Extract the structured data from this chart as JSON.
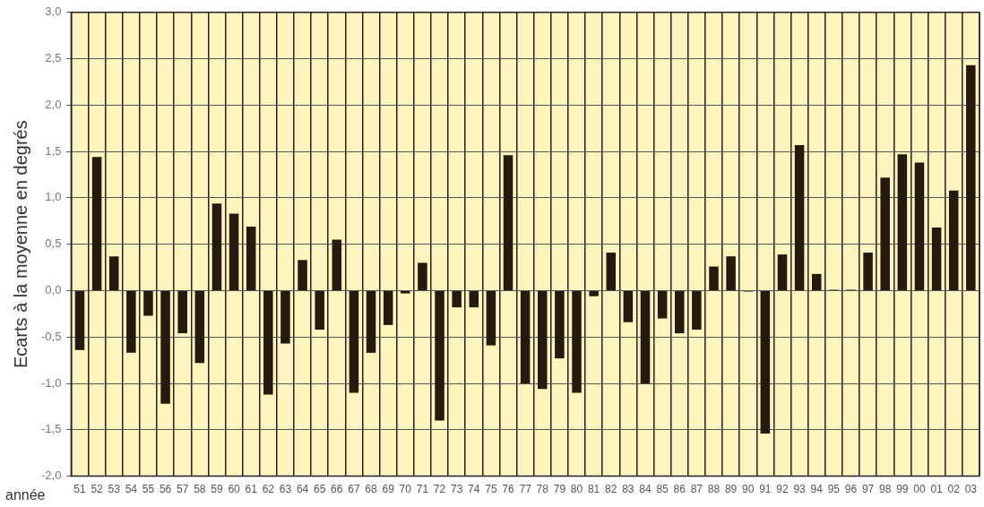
{
  "chart_data": {
    "type": "bar",
    "ylabel": "Ecarts à la moyenne en degrés",
    "xlabel": "année",
    "categories": [
      "51",
      "52",
      "53",
      "54",
      "55",
      "56",
      "57",
      "58",
      "59",
      "60",
      "61",
      "62",
      "63",
      "64",
      "65",
      "66",
      "67",
      "68",
      "69",
      "70",
      "71",
      "72",
      "73",
      "74",
      "75",
      "76",
      "77",
      "78",
      "79",
      "80",
      "81",
      "82",
      "83",
      "84",
      "85",
      "86",
      "87",
      "88",
      "89",
      "90",
      "91",
      "92",
      "93",
      "94",
      "95",
      "96",
      "97",
      "98",
      "99",
      "00",
      "01",
      "02",
      "03"
    ],
    "values": [
      -0.64,
      1.44,
      0.37,
      -0.67,
      -0.27,
      -1.22,
      -0.46,
      -0.78,
      0.94,
      0.83,
      0.69,
      -1.12,
      -0.57,
      0.33,
      -0.42,
      0.55,
      -1.1,
      -0.67,
      -0.37,
      -0.03,
      0.3,
      -1.4,
      -0.18,
      -0.18,
      -0.59,
      1.46,
      -1.0,
      -1.06,
      -0.73,
      -1.1,
      -0.06,
      0.41,
      -0.34,
      -1.0,
      -0.3,
      -0.46,
      -0.42,
      0.26,
      0.37,
      -0.01,
      -1.54,
      0.39,
      1.57,
      0.18,
      0.01,
      0.01,
      0.41,
      1.22,
      1.47,
      1.38,
      0.68,
      1.08,
      2.43
    ],
    "color": "#241a0e",
    "ylim": [
      -2.0,
      3.0
    ],
    "yticks": [
      {
        "value": -2.0,
        "label": "-2,0"
      },
      {
        "value": -1.5,
        "label": "-1,5"
      },
      {
        "value": -1.0,
        "label": "-1,0"
      },
      {
        "value": -0.5,
        "label": "-0,5"
      },
      {
        "value": 0,
        "label": "0,0"
      },
      {
        "value": 0.5,
        "label": "0,5"
      },
      {
        "value": 1.0,
        "label": "1,0"
      },
      {
        "value": 1.5,
        "label": "1,5"
      },
      {
        "value": 2.0,
        "label": "2,0"
      },
      {
        "value": 2.5,
        "label": "2,5"
      },
      {
        "value": 3.0,
        "label": "3,0"
      }
    ],
    "grid": true,
    "legend": false
  }
}
